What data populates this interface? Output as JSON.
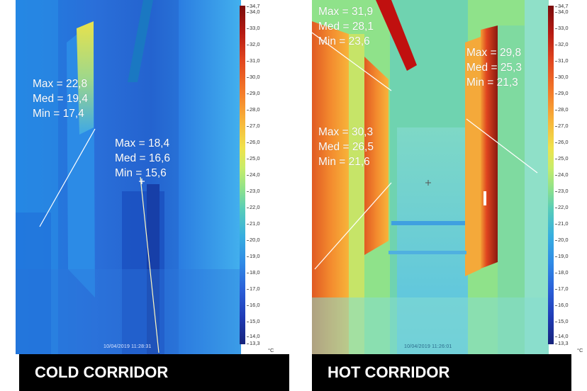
{
  "panels": [
    {
      "title": "COLD CORRIDOR",
      "timestamp": "10/04/2019 11:28:31",
      "unit": "°C",
      "readouts": [
        {
          "max": "Max = 22,8",
          "med": "Med = 19,4",
          "min": "Min = 17,4"
        },
        {
          "max": "Max = 18,4",
          "med": "Med = 16,6",
          "min": "Min = 15,6"
        }
      ],
      "arrow_color": "#1a78c2"
    },
    {
      "title": "HOT CORRIDOR",
      "timestamp": "10/04/2019 11:26:01",
      "unit": "°C",
      "readouts": [
        {
          "max": "Max = 31,9",
          "med": "Med = 28,1",
          "min": "Min = 23,6"
        },
        {
          "max": "Max = 30,3",
          "med": "Med = 26,5",
          "min": "Min = 21,6"
        },
        {
          "max": "Max = 29,8",
          "med": "Med = 25,3",
          "min": "Min = 21,3"
        }
      ],
      "arrow_color": "#c0100f"
    }
  ],
  "scale_ticks": [
    "34,7",
    "34,0",
    "33,0",
    "32,0",
    "31,0",
    "30,0",
    "29,0",
    "28,0",
    "27,0",
    "26,0",
    "25,0",
    "24,0",
    "23,0",
    "22,0",
    "21,0",
    "20,0",
    "19,0",
    "18,0",
    "17,0",
    "16,0",
    "15,0",
    "14,0",
    "13,3"
  ]
}
